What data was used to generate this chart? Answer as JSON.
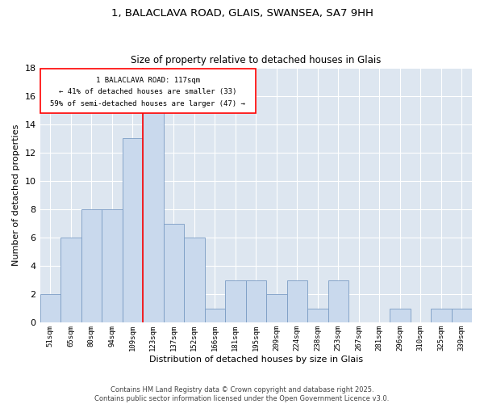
{
  "title1": "1, BALACLAVA ROAD, GLAIS, SWANSEA, SA7 9HH",
  "title2": "Size of property relative to detached houses in Glais",
  "xlabel": "Distribution of detached houses by size in Glais",
  "ylabel": "Number of detached properties",
  "categories": [
    "51sqm",
    "65sqm",
    "80sqm",
    "94sqm",
    "109sqm",
    "123sqm",
    "137sqm",
    "152sqm",
    "166sqm",
    "181sqm",
    "195sqm",
    "209sqm",
    "224sqm",
    "238sqm",
    "253sqm",
    "267sqm",
    "281sqm",
    "296sqm",
    "310sqm",
    "325sqm",
    "339sqm"
  ],
  "values": [
    2,
    6,
    8,
    8,
    13,
    15,
    7,
    6,
    1,
    3,
    3,
    2,
    3,
    1,
    3,
    0,
    0,
    1,
    0,
    1,
    1
  ],
  "bar_color": "#c9d9ed",
  "bar_edge_color": "#7a9cc4",
  "background_color": "#dde6f0",
  "ylim": [
    0,
    18
  ],
  "yticks": [
    0,
    2,
    4,
    6,
    8,
    10,
    12,
    14,
    16,
    18
  ],
  "property_label": "1 BALACLAVA ROAD: 117sqm",
  "annotation_line1": "← 41% of detached houses are smaller (33)",
  "annotation_line2": "59% of semi-detached houses are larger (47) →",
  "red_line_x": 4.5,
  "footer1": "Contains HM Land Registry data © Crown copyright and database right 2025.",
  "footer2": "Contains public sector information licensed under the Open Government Licence v3.0."
}
